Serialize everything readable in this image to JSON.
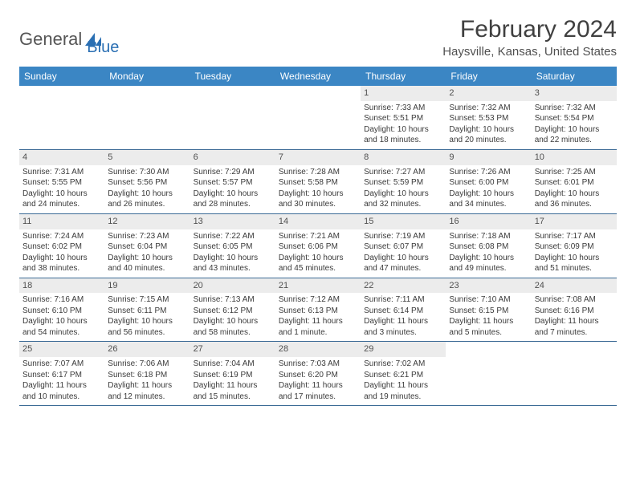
{
  "logo": {
    "text1": "General",
    "text2": "Blue",
    "color1": "#6a6a6a",
    "color2": "#2a6fb3"
  },
  "title": "February 2024",
  "location": "Haysville, Kansas, United States",
  "colors": {
    "header_bg": "#3b86c4",
    "header_text": "#ffffff",
    "row_border": "#3b6a95",
    "daynum_bg": "#ececec",
    "text": "#3a3a3a"
  },
  "day_names": [
    "Sunday",
    "Monday",
    "Tuesday",
    "Wednesday",
    "Thursday",
    "Friday",
    "Saturday"
  ],
  "weeks": [
    [
      null,
      null,
      null,
      null,
      {
        "n": "1",
        "sunrise": "7:33 AM",
        "sunset": "5:51 PM",
        "daylight": "10 hours and 18 minutes."
      },
      {
        "n": "2",
        "sunrise": "7:32 AM",
        "sunset": "5:53 PM",
        "daylight": "10 hours and 20 minutes."
      },
      {
        "n": "3",
        "sunrise": "7:32 AM",
        "sunset": "5:54 PM",
        "daylight": "10 hours and 22 minutes."
      }
    ],
    [
      {
        "n": "4",
        "sunrise": "7:31 AM",
        "sunset": "5:55 PM",
        "daylight": "10 hours and 24 minutes."
      },
      {
        "n": "5",
        "sunrise": "7:30 AM",
        "sunset": "5:56 PM",
        "daylight": "10 hours and 26 minutes."
      },
      {
        "n": "6",
        "sunrise": "7:29 AM",
        "sunset": "5:57 PM",
        "daylight": "10 hours and 28 minutes."
      },
      {
        "n": "7",
        "sunrise": "7:28 AM",
        "sunset": "5:58 PM",
        "daylight": "10 hours and 30 minutes."
      },
      {
        "n": "8",
        "sunrise": "7:27 AM",
        "sunset": "5:59 PM",
        "daylight": "10 hours and 32 minutes."
      },
      {
        "n": "9",
        "sunrise": "7:26 AM",
        "sunset": "6:00 PM",
        "daylight": "10 hours and 34 minutes."
      },
      {
        "n": "10",
        "sunrise": "7:25 AM",
        "sunset": "6:01 PM",
        "daylight": "10 hours and 36 minutes."
      }
    ],
    [
      {
        "n": "11",
        "sunrise": "7:24 AM",
        "sunset": "6:02 PM",
        "daylight": "10 hours and 38 minutes."
      },
      {
        "n": "12",
        "sunrise": "7:23 AM",
        "sunset": "6:04 PM",
        "daylight": "10 hours and 40 minutes."
      },
      {
        "n": "13",
        "sunrise": "7:22 AM",
        "sunset": "6:05 PM",
        "daylight": "10 hours and 43 minutes."
      },
      {
        "n": "14",
        "sunrise": "7:21 AM",
        "sunset": "6:06 PM",
        "daylight": "10 hours and 45 minutes."
      },
      {
        "n": "15",
        "sunrise": "7:19 AM",
        "sunset": "6:07 PM",
        "daylight": "10 hours and 47 minutes."
      },
      {
        "n": "16",
        "sunrise": "7:18 AM",
        "sunset": "6:08 PM",
        "daylight": "10 hours and 49 minutes."
      },
      {
        "n": "17",
        "sunrise": "7:17 AM",
        "sunset": "6:09 PM",
        "daylight": "10 hours and 51 minutes."
      }
    ],
    [
      {
        "n": "18",
        "sunrise": "7:16 AM",
        "sunset": "6:10 PM",
        "daylight": "10 hours and 54 minutes."
      },
      {
        "n": "19",
        "sunrise": "7:15 AM",
        "sunset": "6:11 PM",
        "daylight": "10 hours and 56 minutes."
      },
      {
        "n": "20",
        "sunrise": "7:13 AM",
        "sunset": "6:12 PM",
        "daylight": "10 hours and 58 minutes."
      },
      {
        "n": "21",
        "sunrise": "7:12 AM",
        "sunset": "6:13 PM",
        "daylight": "11 hours and 1 minute."
      },
      {
        "n": "22",
        "sunrise": "7:11 AM",
        "sunset": "6:14 PM",
        "daylight": "11 hours and 3 minutes."
      },
      {
        "n": "23",
        "sunrise": "7:10 AM",
        "sunset": "6:15 PM",
        "daylight": "11 hours and 5 minutes."
      },
      {
        "n": "24",
        "sunrise": "7:08 AM",
        "sunset": "6:16 PM",
        "daylight": "11 hours and 7 minutes."
      }
    ],
    [
      {
        "n": "25",
        "sunrise": "7:07 AM",
        "sunset": "6:17 PM",
        "daylight": "11 hours and 10 minutes."
      },
      {
        "n": "26",
        "sunrise": "7:06 AM",
        "sunset": "6:18 PM",
        "daylight": "11 hours and 12 minutes."
      },
      {
        "n": "27",
        "sunrise": "7:04 AM",
        "sunset": "6:19 PM",
        "daylight": "11 hours and 15 minutes."
      },
      {
        "n": "28",
        "sunrise": "7:03 AM",
        "sunset": "6:20 PM",
        "daylight": "11 hours and 17 minutes."
      },
      {
        "n": "29",
        "sunrise": "7:02 AM",
        "sunset": "6:21 PM",
        "daylight": "11 hours and 19 minutes."
      },
      null,
      null
    ]
  ]
}
